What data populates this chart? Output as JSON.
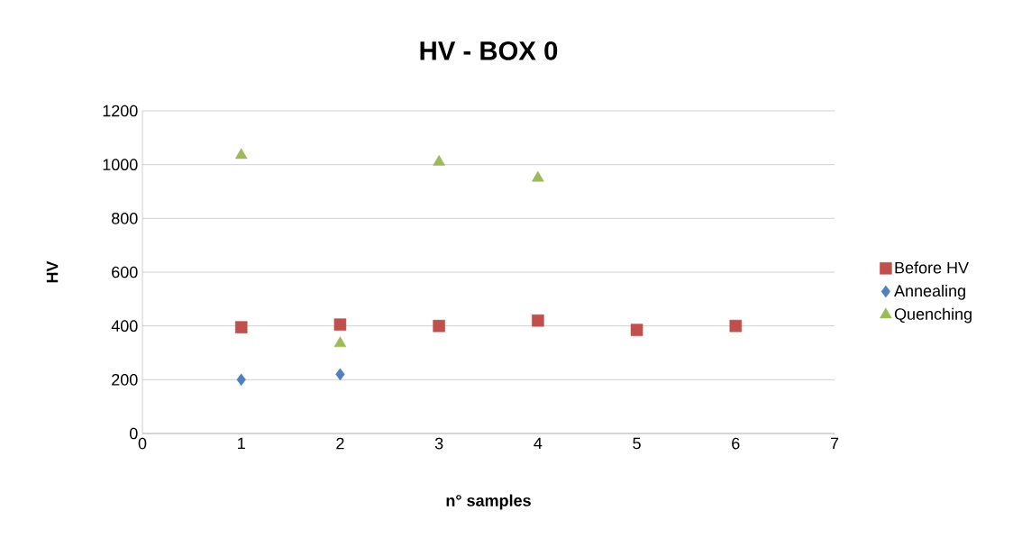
{
  "chart_data": {
    "type": "scatter",
    "title": "HV - BOX 0",
    "xlabel": "n° samples",
    "ylabel": "HV",
    "xlim": [
      0,
      7
    ],
    "xticks": [
      0,
      1,
      2,
      3,
      4,
      5,
      6,
      7
    ],
    "ylim": [
      0,
      1200
    ],
    "yticks": [
      0,
      200,
      400,
      600,
      800,
      1000,
      1200
    ],
    "grid": "y",
    "legend": "right",
    "series": [
      {
        "name": "Before HV",
        "color": "#c0504d",
        "marker": "square",
        "x": [
          1,
          2,
          3,
          4,
          5,
          6
        ],
        "values": [
          395,
          405,
          400,
          420,
          385,
          400
        ]
      },
      {
        "name": "Annealing",
        "color": "#4f81bd",
        "marker": "diamond",
        "x": [
          1,
          2
        ],
        "values": [
          200,
          220
        ]
      },
      {
        "name": "Quenching",
        "color": "#9bbb59",
        "marker": "triangle",
        "x": [
          1,
          2,
          3,
          4
        ],
        "values": [
          1035,
          335,
          1010,
          950
        ]
      }
    ]
  }
}
